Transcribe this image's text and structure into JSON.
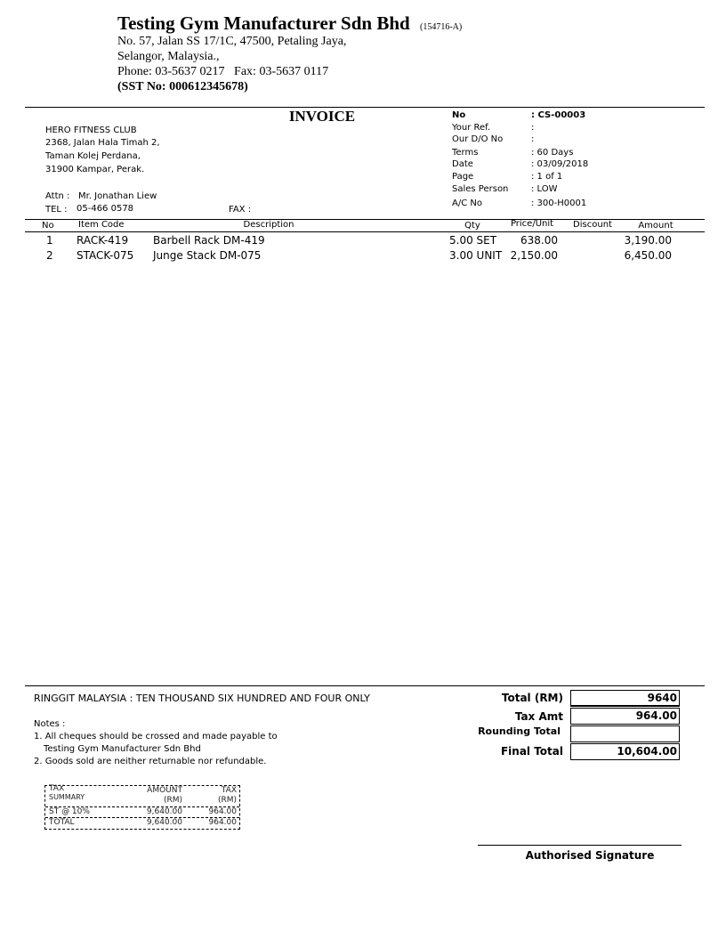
{
  "company": {
    "name": "Testing Gym Manufacturer Sdn Bhd",
    "reg_no": "(154716-A)",
    "address1": "No. 57, Jalan SS 17/1C, 47500, Petaling Jaya,",
    "address2": "Selangor, Malaysia.,",
    "phone": "Phone: 03-5637 0217   Fax: 03-5637 0117",
    "sst": "(SST No: 000612345678)"
  },
  "title": "INVOICE",
  "customer": {
    "name": "HERO FITNESS CLUB",
    "address1": "2368, Jalan Hala Timah 2,",
    "address2": "Taman Kolej Perdana,",
    "address3": "31900 Kampar, Perak.",
    "attn_label": "Attn :",
    "attn": "Mr. Jonathan Liew",
    "tel_label": "TEL :",
    "tel": "05-466 0578",
    "fax_label": "FAX :"
  },
  "info": [
    {
      "label": "No",
      "value": ": CS-00003"
    },
    {
      "label": "Your Ref.",
      "value": ":"
    },
    {
      "label": "Our D/O No",
      "value": ":"
    },
    {
      "label": "Terms",
      "value": ": 60 Days"
    },
    {
      "label": "Date",
      "value": ": 03/09/2018"
    },
    {
      "label": "Page",
      "value": ": 1 of 1"
    },
    {
      "label": "Sales Person",
      "value": ": LOW"
    },
    {
      "label": "A/C No",
      "value": ": 300-H0001"
    }
  ],
  "columns": {
    "no": "No",
    "code": "Item Code",
    "desc": "Description",
    "qty": "Qty",
    "price": "Price/Unit",
    "discount": "Discount",
    "amount": "Amount"
  },
  "items": [
    {
      "no": "1",
      "code": "RACK-419",
      "desc": "Barbell Rack DM-419",
      "qty": "5.00 SET",
      "price": "638.00",
      "discount": "",
      "amount": "3,190.00"
    },
    {
      "no": "2",
      "code": "STACK-075",
      "desc": "Junge Stack DM-075",
      "qty": "3.00 UNIT",
      "price": "2,150.00",
      "discount": "",
      "amount": "6,450.00"
    }
  ],
  "amount_words": "RINGGIT MALAYSIA : TEN THOUSAND SIX HUNDRED AND FOUR ONLY",
  "notes": {
    "title": "Notes :",
    "line1": "1. All cheques should be crossed and made payable to",
    "line2": "Testing Gym Manufacturer Sdn Bhd",
    "line3": "2. Goods sold are neither returnable nor refundable."
  },
  "tax_summary": {
    "h1": "TAX",
    "h1b": "SUMMARY",
    "h2": "AMOUNT",
    "h2b": "(RM)",
    "h3": "TAX",
    "h3b": "(RM)",
    "rows": [
      {
        "label": "ST @ 10%",
        "amount": "9,640.00",
        "tax": "964.00"
      },
      {
        "label": "TOTAL",
        "amount": "9,640.00",
        "tax": "964.00"
      }
    ]
  },
  "totals": {
    "total_label": "Total (RM)",
    "total": "9640",
    "tax_label": "Tax Amt",
    "tax": "964.00",
    "rounding_label": "Rounding Total",
    "rounding": "",
    "final_label": "Final Total",
    "final": "10,604.00"
  },
  "signature": "Authorised Signature"
}
